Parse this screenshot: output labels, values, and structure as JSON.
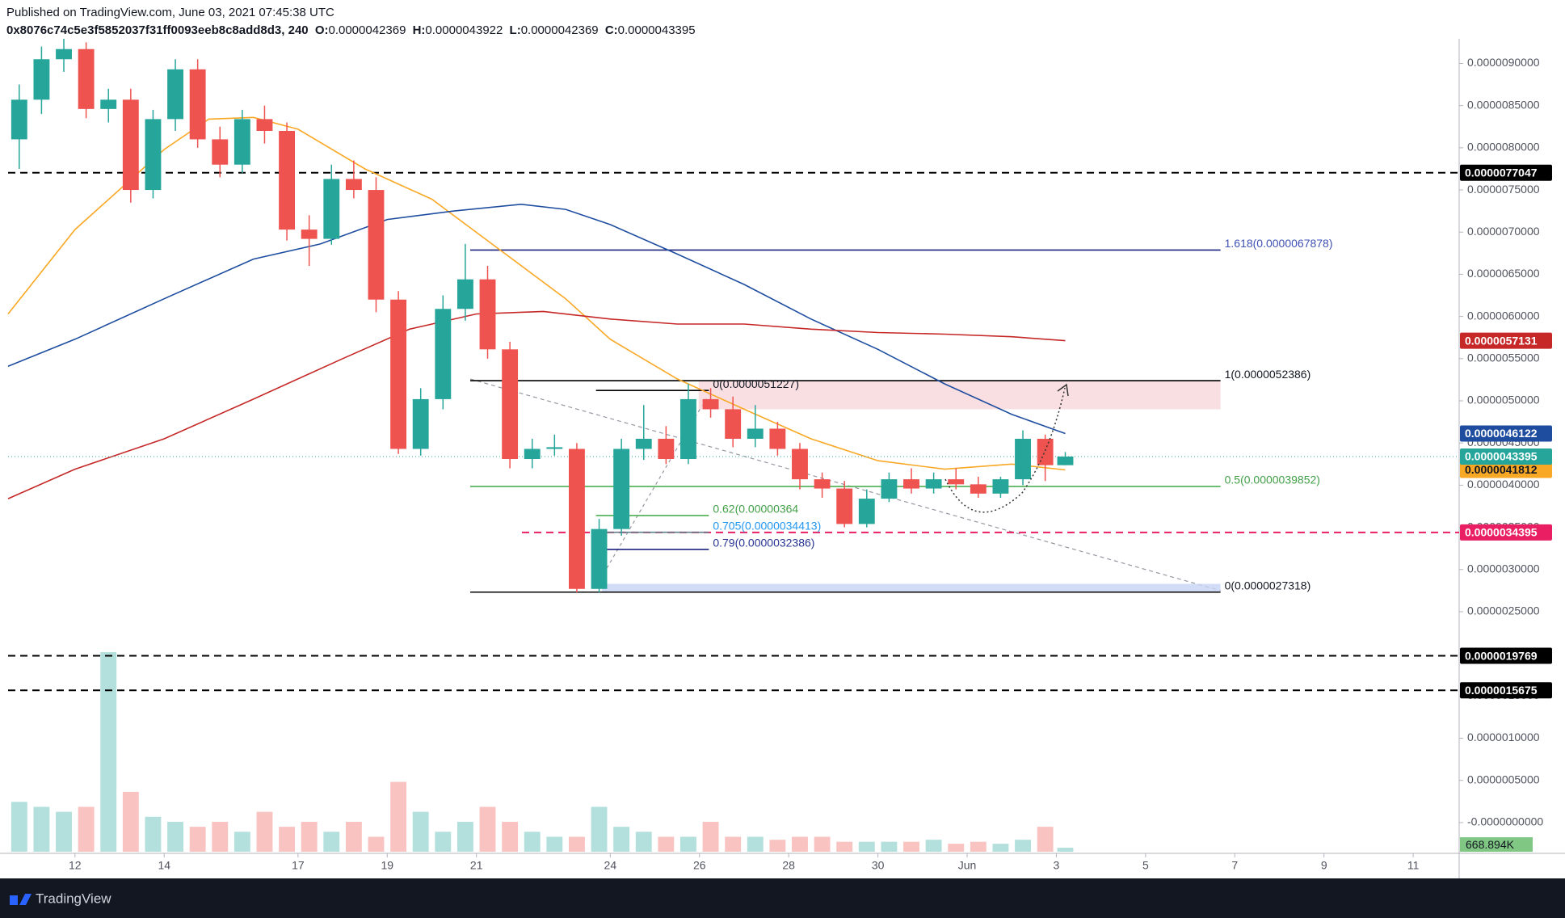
{
  "header": {
    "published": "Published on TradingView.com, June 03, 2021 07:45:38 UTC",
    "symbol": "0x8076c74c5e3f5852037f31ff0093eeb8c8add8d3, 240",
    "o_label": "O:",
    "h_label": "H:",
    "l_label": "L:",
    "c_label": "C:"
  },
  "footer": {
    "brand": "TradingView"
  },
  "chart_data": {
    "type": "candlestick",
    "candle_colors": {
      "up": "#26a69a",
      "down": "#ef5350"
    },
    "xlim": [
      10.5,
      43.03
    ],
    "ylim": [
      -3.65e-07,
      9.225e-06
    ],
    "xticks": [
      12,
      14,
      17,
      19,
      21,
      24,
      26,
      28,
      30,
      {
        "value": 32,
        "label": "Jun"
      },
      {
        "value": 34,
        "label": "3"
      },
      {
        "value": 36,
        "label": "5"
      },
      {
        "value": 38,
        "label": "7"
      },
      {
        "value": 40,
        "label": "9"
      },
      {
        "value": 42,
        "label": "11"
      }
    ],
    "yticks": [
      {
        "value": 9e-06,
        "label": "0.0000090000"
      },
      {
        "value": 8.5e-06,
        "label": "0.0000085000"
      },
      {
        "value": 8e-06,
        "label": "0.0000080000"
      },
      {
        "value": 7.5e-06,
        "label": "0.0000075000"
      },
      {
        "value": 7e-06,
        "label": "0.0000070000"
      },
      {
        "value": 6.5e-06,
        "label": "0.0000065000"
      },
      {
        "value": 6e-06,
        "label": "0.0000060000"
      },
      {
        "value": 5.5e-06,
        "label": "0.0000055000"
      },
      {
        "value": 5e-06,
        "label": "0.0000050000"
      },
      {
        "value": 4.5e-06,
        "label": "0.0000045000"
      },
      {
        "value": 4e-06,
        "label": "0.0000040000"
      },
      {
        "value": 3.5e-06,
        "label": "0.0000035000"
      },
      {
        "value": 3e-06,
        "label": "0.0000030000"
      },
      {
        "value": 2.5e-06,
        "label": "0.0000025000"
      },
      {
        "value": 2e-06,
        "label": "0.0000020000"
      },
      {
        "value": 1.5e-06,
        "label": "0.0000015000"
      },
      {
        "value": 1e-06,
        "label": "0.0000010000"
      },
      {
        "value": 5e-07,
        "label": "0.0000005000"
      },
      {
        "value": 0,
        "label": "-0.0000000000"
      }
    ],
    "x": [
      10.75,
      11.25,
      11.75,
      12.25,
      12.75,
      13.25,
      13.75,
      14.25,
      14.75,
      15.25,
      15.75,
      16.25,
      16.75,
      17.25,
      17.75,
      18.25,
      18.75,
      19.25,
      19.75,
      20.25,
      20.75,
      21.25,
      21.75,
      22.25,
      22.75,
      23.25,
      23.75,
      24.25,
      24.75,
      25.25,
      25.75,
      26.25,
      26.75,
      27.25,
      27.75,
      28.25,
      28.75,
      29.25,
      29.75,
      30.25,
      30.75,
      31.25,
      31.75,
      32.25,
      32.75,
      33.25,
      33.75,
      34.2
    ],
    "open": [
      8.1e-06,
      8.57e-06,
      9.05e-06,
      9.17e-06,
      8.46e-06,
      8.57e-06,
      7.5e-06,
      8.34e-06,
      8.93e-06,
      8.1e-06,
      7.8e-06,
      8.34e-06,
      8.2e-06,
      7.03e-06,
      6.92e-06,
      7.63e-06,
      7.5e-06,
      6.2e-06,
      4.43e-06,
      5.02e-06,
      6.09e-06,
      6.44e-06,
      5.61e-06,
      4.31e-06,
      4.43e-06,
      4.43e-06,
      2.77e-06,
      3.48e-06,
      4.43e-06,
      4.55e-06,
      4.31e-06,
      5.02e-06,
      4.9e-06,
      4.55e-06,
      4.67e-06,
      4.43e-06,
      4.07e-06,
      3.96e-06,
      3.54e-06,
      3.84e-06,
      4.07e-06,
      3.96e-06,
      4.07e-06,
      4.01e-06,
      3.9e-06,
      4.07e-06,
      4.55e-06,
      4.2369e-06
    ],
    "high": [
      8.75e-06,
      9.2e-06,
      9.3e-06,
      9.25e-06,
      8.7e-06,
      8.7e-06,
      8.45e-06,
      9.05e-06,
      9.05e-06,
      8.25e-06,
      8.45e-06,
      8.5e-06,
      8.3e-06,
      7.2e-06,
      7.8e-06,
      7.85e-06,
      7.65e-06,
      6.3e-06,
      5.15e-06,
      6.25e-06,
      6.86e-06,
      6.6e-06,
      5.7e-06,
      4.55e-06,
      4.6e-06,
      4.5e-06,
      3.6e-06,
      4.55e-06,
      4.95e-06,
      4.7e-06,
      5.2e-06,
      5.15e-06,
      5.05e-06,
      4.95e-06,
      4.75e-06,
      4.5e-06,
      4.15e-06,
      4.05e-06,
      3.95e-06,
      4.15e-06,
      4.2e-06,
      4.15e-06,
      4.2e-06,
      4.1e-06,
      4.1e-06,
      4.65e-06,
      4.6e-06,
      4.3922e-06
    ],
    "low": [
      7.75e-06,
      8.4e-06,
      8.9e-06,
      8.35e-06,
      8.3e-06,
      7.35e-06,
      7.4e-06,
      8.2e-06,
      8e-06,
      7.65e-06,
      7.7e-06,
      8.05e-06,
      6.9e-06,
      6.6e-06,
      6.85e-06,
      7.4e-06,
      6.05e-06,
      4.37e-06,
      4.35e-06,
      4.9e-06,
      5.95e-06,
      5.5e-06,
      4.2e-06,
      4.2e-06,
      4.35e-06,
      2.73e-06,
      2.73e-06,
      3.4e-06,
      4.3e-06,
      4.25e-06,
      4.25e-06,
      4.8e-06,
      4.45e-06,
      4.45e-06,
      4.35e-06,
      3.95e-06,
      3.85e-06,
      3.5e-06,
      3.5e-06,
      3.8e-06,
      3.9e-06,
      3.9e-06,
      3.95e-06,
      3.85e-06,
      3.85e-06,
      4e-06,
      4.05e-06,
      4.2369e-06
    ],
    "close": [
      8.57e-06,
      9.05e-06,
      9.17e-06,
      8.46e-06,
      8.57e-06,
      7.5e-06,
      8.34e-06,
      8.93e-06,
      8.1e-06,
      7.8e-06,
      8.34e-06,
      8.2e-06,
      7.03e-06,
      6.92e-06,
      7.63e-06,
      7.5e-06,
      6.2e-06,
      4.43e-06,
      5.02e-06,
      6.09e-06,
      6.44e-06,
      5.61e-06,
      4.31e-06,
      4.43e-06,
      4.45e-06,
      2.77e-06,
      3.48e-06,
      4.43e-06,
      4.55e-06,
      4.31e-06,
      5.02e-06,
      4.9e-06,
      4.55e-06,
      4.67e-06,
      4.43e-06,
      4.07e-06,
      3.96e-06,
      3.54e-06,
      3.84e-06,
      4.07e-06,
      3.96e-06,
      4.07e-06,
      4.01e-06,
      3.9e-06,
      4.07e-06,
      4.55e-06,
      4.2369e-06,
      4.3395e-06
    ],
    "volume": {
      "values": [
        8361000,
        7525000,
        6689000,
        7525000,
        33445000,
        10033000,
        5853000,
        5017000,
        4181000,
        5017000,
        3345000,
        6689000,
        4181000,
        5017000,
        3345000,
        5017000,
        2508000,
        11706000,
        6689000,
        3345000,
        5017000,
        7525000,
        5017000,
        3345000,
        2508000,
        2508000,
        7525000,
        4181000,
        3345000,
        2508000,
        2508000,
        5017000,
        2508000,
        2508000,
        2007000,
        2508000,
        2508000,
        1672000,
        1672000,
        1672000,
        1672000,
        2007000,
        1338000,
        1672000,
        1338000,
        2007000,
        4181000,
        668894
      ],
      "last_label": "668.894K",
      "badge_color": "#4caf50"
    },
    "current_color": "#26a69a",
    "lines": [
      {
        "color": "#f9a825",
        "x": [
          10.5,
          12,
          14,
          15,
          16,
          17,
          18.5,
          20,
          21.5,
          23,
          24,
          25.5,
          27,
          28.5,
          30,
          31.5,
          33,
          34.2
        ],
        "values": [
          6.03e-06,
          7.03e-06,
          7.98e-06,
          8.34e-06,
          8.36e-06,
          8.22e-06,
          7.75e-06,
          7.39e-06,
          6.8e-06,
          6.21e-06,
          5.73e-06,
          5.26e-06,
          4.9e-06,
          4.55e-06,
          4.29e-06,
          4.19e-06,
          4.25e-06,
          4.1812e-06
        ]
      },
      {
        "color": "#1e4da0",
        "x": [
          10.5,
          12,
          14,
          16,
          17.5,
          19,
          20.5,
          22,
          23,
          24,
          25.5,
          27,
          28.5,
          30,
          31.5,
          33,
          34.2
        ],
        "values": [
          5.41e-06,
          5.73e-06,
          6.21e-06,
          6.68e-06,
          6.86e-06,
          7.15e-06,
          7.25e-06,
          7.33e-06,
          7.27e-06,
          7.09e-06,
          6.74e-06,
          6.38e-06,
          5.97e-06,
          5.61e-06,
          5.2e-06,
          4.84e-06,
          4.6122e-06
        ]
      },
      {
        "color": "#c62828",
        "x": [
          10.5,
          12,
          14,
          16,
          18,
          19.5,
          21,
          22.5,
          24,
          25.5,
          27,
          28.5,
          30,
          31.5,
          33,
          34.2
        ],
        "values": [
          3.84e-06,
          4.19e-06,
          4.55e-06,
          5.02e-06,
          5.5e-06,
          5.85e-06,
          6.03e-06,
          6.06e-06,
          5.97e-06,
          5.91e-06,
          5.91e-06,
          5.85e-06,
          5.81e-06,
          5.79e-06,
          5.76e-06,
          5.7131e-06
        ]
      }
    ],
    "levels": [
      {
        "value": 7.7047e-06,
        "color": "#000000",
        "from": 10.5
      },
      {
        "value": 3.4395e-06,
        "color": "#e91e63",
        "from": 22.02
      },
      {
        "value": 1.9769e-06,
        "color": "#000000",
        "from": 10.5
      },
      {
        "value": 1.5675e-06,
        "color": "#000000",
        "from": 10.5
      }
    ],
    "zones": [
      {
        "y": [
          4.9e-06,
          5.2386e-06
        ],
        "x": [
          25.98,
          37.68
        ],
        "color": "#f8d7da"
      },
      {
        "y": [
          2.7318e-06,
          2.83e-06
        ],
        "x": [
          23.81,
          37.68
        ],
        "color": "#c5d3f5"
      }
    ],
    "fibs": [
      {
        "label": "1.618(0.0000067878)",
        "value": 6.7878e-06,
        "x": [
          20.86,
          37.68
        ],
        "color": "#1a237e",
        "text_color": "#3f51b5"
      },
      {
        "label": "1(0.0000052386)",
        "value": 5.2386e-06,
        "x": [
          20.86,
          37.68
        ],
        "color": "#000000",
        "text_color": "#131722"
      },
      {
        "label": "0.5(0.0000039852)",
        "value": 3.9852e-06,
        "x": [
          20.86,
          37.68
        ],
        "color": "#4caf50",
        "text_color": "#43a047"
      },
      {
        "label": "0(0.0000027318)",
        "value": 2.7318e-06,
        "x": [
          20.86,
          37.68
        ],
        "color": "#000000",
        "text_color": "#131722"
      },
      {
        "label": "0(0.0000051227)",
        "value": 5.1227e-06,
        "x": [
          23.68,
          26.21
        ],
        "color": "#000000",
        "text_color": "#131722"
      },
      {
        "label": "0.62(0.00000364",
        "value": 3.64e-06,
        "x": [
          23.68,
          26.21
        ],
        "color": "#4caf50",
        "text_color": "#43a047"
      },
      {
        "label": "0.705(0.0000034413)",
        "value": 3.4413e-06,
        "x": [
          23.68,
          26.21
        ],
        "color": "#607d8b",
        "text_color": "#2196f3"
      },
      {
        "label": "0.79(0.0000032386)",
        "value": 3.2386e-06,
        "x": [
          23.68,
          26.21
        ],
        "color": "#1a237e",
        "text_color": "#283593"
      }
    ]
  }
}
